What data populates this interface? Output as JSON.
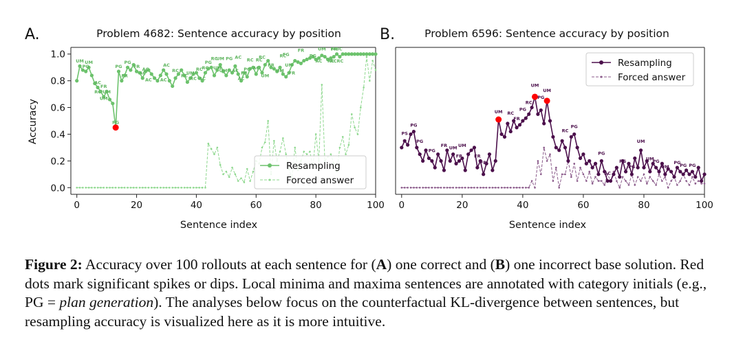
{
  "caption": {
    "label": "Figure 2:",
    "t1": " Accuracy over 100 rollouts at each sentence for (",
    "A": "A",
    "t2": ") one correct and (",
    "B": "B",
    "t3": ") one incorrect base solution. Red dots mark significant spikes or dips. Local minima and maxima sentences are annotated with category initials (e.g., PG = ",
    "em": "plan generation",
    "t4": "). The analyses below focus on the counterfactual KL-divergence between sentences, but resampling accuracy is visualized here as it is more intuitive."
  },
  "chart_data": [
    {
      "type": "line",
      "panel_letter": "A.",
      "title": "Problem 4682: Sentence accuracy by position",
      "xlabel": "Sentence index",
      "ylabel": "Accuracy",
      "xlim": [
        -2,
        100
      ],
      "ylim": [
        -0.05,
        1.05
      ],
      "xticks": [
        0,
        20,
        40,
        60,
        80,
        100
      ],
      "yticks": [
        0.0,
        0.2,
        0.4,
        0.6,
        0.8,
        1.0
      ],
      "ytick_labels": [
        "0.0",
        "0.2",
        "0.4",
        "0.6",
        "0.8",
        "1.0"
      ],
      "grid": false,
      "legend_position": "lower-right",
      "x": [
        0,
        1,
        2,
        3,
        4,
        5,
        6,
        7,
        8,
        9,
        10,
        11,
        12,
        13,
        14,
        15,
        16,
        17,
        18,
        19,
        20,
        21,
        22,
        23,
        24,
        25,
        26,
        27,
        28,
        29,
        30,
        31,
        32,
        33,
        34,
        35,
        36,
        37,
        38,
        39,
        40,
        41,
        42,
        43,
        44,
        45,
        46,
        47,
        48,
        49,
        50,
        51,
        52,
        53,
        54,
        55,
        56,
        57,
        58,
        59,
        60,
        61,
        62,
        63,
        64,
        65,
        66,
        67,
        68,
        69,
        70,
        71,
        72,
        73,
        74,
        75,
        76,
        77,
        78,
        79,
        80,
        81,
        82,
        83,
        84,
        85,
        86,
        87,
        88,
        89,
        90,
        91,
        92,
        93,
        94,
        95,
        96,
        97,
        98,
        99,
        100
      ],
      "series": [
        {
          "name": "Resampling",
          "color": "#6cc26c",
          "style": "solid",
          "values": [
            0.8,
            0.91,
            0.88,
            0.87,
            0.9,
            0.84,
            0.78,
            0.75,
            0.72,
            0.68,
            0.72,
            0.66,
            0.63,
            0.45,
            0.87,
            0.8,
            0.84,
            0.9,
            0.88,
            0.92,
            0.87,
            0.86,
            0.82,
            0.87,
            0.88,
            0.85,
            0.82,
            0.8,
            0.84,
            0.88,
            0.85,
            0.8,
            0.76,
            0.82,
            0.85,
            0.88,
            0.84,
            0.79,
            0.82,
            0.85,
            0.86,
            0.82,
            0.8,
            0.86,
            0.89,
            0.9,
            0.84,
            0.88,
            0.92,
            0.87,
            0.84,
            0.88,
            0.86,
            0.91,
            0.85,
            0.8,
            0.86,
            0.83,
            0.89,
            0.9,
            0.85,
            0.9,
            0.86,
            0.92,
            0.95,
            0.9,
            0.89,
            0.87,
            0.9,
            0.85,
            0.83,
            0.86,
            0.92,
            0.95,
            0.94,
            0.93,
            0.95,
            0.96,
            0.97,
            0.98,
            0.96,
            0.97,
            0.99,
            0.98,
            0.96,
            0.97,
            0.98,
            1.0,
            0.98,
            1.0,
            1.0,
            1.0,
            1.0,
            1.0,
            1.0,
            1.0,
            1.0,
            1.0,
            1.0,
            1.0,
            1.0
          ]
        },
        {
          "name": "Forced answer",
          "color": "#8fd88f",
          "style": "dashed",
          "values": [
            0.0,
            0.0,
            0.0,
            0.0,
            0.0,
            0.0,
            0.0,
            0.0,
            0.0,
            0.0,
            0.0,
            0.0,
            0.0,
            0.0,
            0.0,
            0.0,
            0.0,
            0.0,
            0.0,
            0.0,
            0.0,
            0.0,
            0.0,
            0.0,
            0.0,
            0.0,
            0.0,
            0.0,
            0.0,
            0.0,
            0.0,
            0.0,
            0.0,
            0.0,
            0.0,
            0.0,
            0.0,
            0.0,
            0.0,
            0.0,
            0.0,
            0.0,
            0.0,
            0.0,
            0.33,
            0.29,
            0.25,
            0.3,
            0.17,
            0.1,
            0.12,
            0.08,
            0.15,
            0.1,
            0.05,
            0.07,
            0.04,
            0.14,
            0.05,
            0.12,
            0.2,
            0.18,
            0.3,
            0.34,
            0.5,
            0.1,
            0.35,
            0.2,
            0.27,
            0.37,
            0.25,
            0.14,
            0.07,
            0.3,
            0.13,
            0.2,
            0.27,
            0.25,
            0.27,
            0.15,
            0.4,
            0.2,
            0.77,
            0.2,
            0.23,
            0.25,
            0.18,
            0.12,
            0.3,
            0.38,
            0.25,
            0.32,
            0.55,
            0.45,
            0.4,
            0.6,
            0.75,
            0.98,
            0.8,
            0.95,
            0.88
          ]
        }
      ],
      "highlights": [
        {
          "x": 13,
          "y": 0.45,
          "label": "PG"
        }
      ],
      "annotations": [
        {
          "x": 1,
          "y": 0.91,
          "t": "UM"
        },
        {
          "x": 4,
          "y": 0.9,
          "t": "UM"
        },
        {
          "x": 3,
          "y": 0.87,
          "t": "PG"
        },
        {
          "x": 7,
          "y": 0.75,
          "t": "AC"
        },
        {
          "x": 9,
          "y": 0.72,
          "t": "FR"
        },
        {
          "x": 7,
          "y": 0.68,
          "t": "RC"
        },
        {
          "x": 10,
          "y": 0.68,
          "t": "UM"
        },
        {
          "x": 9,
          "y": 0.63,
          "t": "UM"
        },
        {
          "x": 13,
          "y": 0.45,
          "t": "PG"
        },
        {
          "x": 14,
          "y": 0.87,
          "t": "PG"
        },
        {
          "x": 16,
          "y": 0.8,
          "t": "FR"
        },
        {
          "x": 17,
          "y": 0.9,
          "t": "PG"
        },
        {
          "x": 20,
          "y": 0.87,
          "t": "FR"
        },
        {
          "x": 23,
          "y": 0.85,
          "t": "AC"
        },
        {
          "x": 22,
          "y": 0.82,
          "t": "AC"
        },
        {
          "x": 24,
          "y": 0.77,
          "t": "AC"
        },
        {
          "x": 30,
          "y": 0.88,
          "t": "AC"
        },
        {
          "x": 29,
          "y": 0.77,
          "t": "AC"
        },
        {
          "x": 33,
          "y": 0.84,
          "t": "RC"
        },
        {
          "x": 36,
          "y": 0.8,
          "t": "RC"
        },
        {
          "x": 38,
          "y": 0.82,
          "t": "UM"
        },
        {
          "x": 39,
          "y": 0.78,
          "t": "RC"
        },
        {
          "x": 41,
          "y": 0.85,
          "t": "RC"
        },
        {
          "x": 42,
          "y": 0.78,
          "t": "AC"
        },
        {
          "x": 43,
          "y": 0.86,
          "t": "RC"
        },
        {
          "x": 44,
          "y": 0.9,
          "t": "PG"
        },
        {
          "x": 46,
          "y": 0.93,
          "t": "RC"
        },
        {
          "x": 48,
          "y": 0.93,
          "t": "UM"
        },
        {
          "x": 47,
          "y": 0.86,
          "t": "UM"
        },
        {
          "x": 49,
          "y": 0.84,
          "t": "UM"
        },
        {
          "x": 51,
          "y": 0.93,
          "t": "PG"
        },
        {
          "x": 54,
          "y": 0.94,
          "t": "AC"
        },
        {
          "x": 53,
          "y": 0.84,
          "t": "AC"
        },
        {
          "x": 55,
          "y": 0.78,
          "t": "AC"
        },
        {
          "x": 58,
          "y": 0.92,
          "t": "RC"
        },
        {
          "x": 57,
          "y": 0.85,
          "t": "PG"
        },
        {
          "x": 56,
          "y": 0.82,
          "t": "FR"
        },
        {
          "x": 60,
          "y": 0.86,
          "t": "AC"
        },
        {
          "x": 61,
          "y": 0.92,
          "t": "RC"
        },
        {
          "x": 62,
          "y": 0.94,
          "t": "RC"
        },
        {
          "x": 63,
          "y": 0.8,
          "t": "UM"
        },
        {
          "x": 65,
          "y": 0.88,
          "t": "FR"
        },
        {
          "x": 69,
          "y": 0.95,
          "t": "RC"
        },
        {
          "x": 70,
          "y": 0.96,
          "t": "FG"
        },
        {
          "x": 68,
          "y": 0.84,
          "t": "UM"
        },
        {
          "x": 71,
          "y": 0.88,
          "t": "UM"
        },
        {
          "x": 72,
          "y": 0.82,
          "t": "FR"
        },
        {
          "x": 75,
          "y": 0.99,
          "t": "FR"
        },
        {
          "x": 79,
          "y": 0.95,
          "t": "PG"
        },
        {
          "x": 81,
          "y": 0.91,
          "t": "AC"
        },
        {
          "x": 82,
          "y": 1.0,
          "t": "UM"
        },
        {
          "x": 86,
          "y": 1.0,
          "t": "FR"
        },
        {
          "x": 87,
          "y": 1.0,
          "t": "MBC"
        },
        {
          "x": 85,
          "y": 0.91,
          "t": "RC"
        },
        {
          "x": 87,
          "y": 0.91,
          "t": "RCRC"
        }
      ]
    },
    {
      "type": "line",
      "panel_letter": "B.",
      "title": "Problem 6596: Sentence accuracy by position",
      "xlabel": "Sentence index",
      "ylabel": "",
      "xlim": [
        -2,
        100
      ],
      "ylim": [
        -0.05,
        1.05
      ],
      "xticks": [
        0,
        20,
        40,
        60,
        80,
        100
      ],
      "grid": false,
      "legend_position": "top-right",
      "x": [
        0,
        1,
        2,
        3,
        4,
        5,
        6,
        7,
        8,
        9,
        10,
        11,
        12,
        13,
        14,
        15,
        16,
        17,
        18,
        19,
        20,
        21,
        22,
        23,
        24,
        25,
        26,
        27,
        28,
        29,
        30,
        31,
        32,
        33,
        34,
        35,
        36,
        37,
        38,
        39,
        40,
        41,
        42,
        43,
        44,
        45,
        46,
        47,
        48,
        49,
        50,
        51,
        52,
        53,
        54,
        55,
        56,
        57,
        58,
        59,
        60,
        61,
        62,
        63,
        64,
        65,
        66,
        67,
        68,
        69,
        70,
        71,
        72,
        73,
        74,
        75,
        76,
        77,
        78,
        79,
        80,
        81,
        82,
        83,
        84,
        85,
        86,
        87,
        88,
        89,
        90,
        91,
        92,
        93,
        94,
        95,
        96,
        97,
        98,
        99,
        100
      ],
      "series": [
        {
          "name": "Resampling",
          "color": "#4b0f4b",
          "style": "solid",
          "values": [
            0.3,
            0.35,
            0.32,
            0.4,
            0.42,
            0.3,
            0.25,
            0.2,
            0.28,
            0.22,
            0.2,
            0.15,
            0.25,
            0.2,
            0.13,
            0.28,
            0.2,
            0.25,
            0.18,
            0.2,
            0.22,
            0.13,
            0.25,
            0.28,
            0.3,
            0.15,
            0.2,
            0.1,
            0.18,
            0.25,
            0.13,
            0.2,
            0.51,
            0.4,
            0.38,
            0.48,
            0.42,
            0.5,
            0.45,
            0.47,
            0.5,
            0.52,
            0.55,
            0.6,
            0.68,
            0.55,
            0.58,
            0.48,
            0.65,
            0.5,
            0.38,
            0.3,
            0.28,
            0.35,
            0.3,
            0.2,
            0.38,
            0.4,
            0.3,
            0.22,
            0.25,
            0.18,
            0.2,
            0.15,
            0.18,
            0.1,
            0.2,
            0.12,
            0.05,
            0.05,
            0.1,
            0.15,
            0.08,
            0.2,
            0.12,
            0.18,
            0.1,
            0.22,
            0.15,
            0.28,
            0.15,
            0.2,
            0.12,
            0.18,
            0.15,
            0.12,
            0.18,
            0.1,
            0.14,
            0.12,
            0.08,
            0.15,
            0.12,
            0.1,
            0.13,
            0.1,
            0.12,
            0.08,
            0.15,
            0.05,
            0.1
          ]
        },
        {
          "name": "Forced answer",
          "color": "#8a5a8a",
          "style": "dashed",
          "values": [
            0.0,
            0.0,
            0.0,
            0.0,
            0.0,
            0.0,
            0.0,
            0.0,
            0.0,
            0.0,
            0.0,
            0.0,
            0.0,
            0.0,
            0.0,
            0.0,
            0.0,
            0.0,
            0.0,
            0.0,
            0.0,
            0.0,
            0.0,
            0.0,
            0.0,
            0.0,
            0.0,
            0.0,
            0.0,
            0.0,
            0.0,
            0.0,
            0.0,
            0.0,
            0.0,
            0.0,
            0.0,
            0.0,
            0.0,
            0.0,
            0.0,
            0.0,
            0.0,
            0.05,
            0.0,
            0.2,
            0.1,
            0.3,
            0.2,
            0.25,
            0.05,
            0.15,
            0.0,
            0.1,
            0.1,
            0.2,
            0.08,
            0.18,
            0.05,
            0.15,
            0.1,
            0.05,
            0.12,
            0.03,
            0.08,
            0.05,
            0.05,
            0.02,
            0.1,
            0.05,
            0.12,
            0.05,
            0.0,
            0.08,
            0.05,
            0.02,
            0.1,
            0.02,
            0.08,
            0.05,
            0.1,
            0.03,
            0.08,
            0.05,
            0.02,
            0.1,
            0.05,
            0.08,
            0.0,
            0.05,
            0.08,
            0.02,
            0.05,
            0.1,
            0.05,
            0.02,
            0.08,
            0.03,
            0.05,
            0.03,
            0.03
          ]
        }
      ],
      "highlights": [
        {
          "x": 32,
          "y": 0.51,
          "label": "UM"
        },
        {
          "x": 44,
          "y": 0.68,
          "label": "UM"
        },
        {
          "x": 48,
          "y": 0.65,
          "label": "UM"
        }
      ],
      "annotations": [
        {
          "x": 1,
          "y": 0.37,
          "t": "PS"
        },
        {
          "x": 4,
          "y": 0.43,
          "t": "PG"
        },
        {
          "x": 6,
          "y": 0.31,
          "t": "PG"
        },
        {
          "x": 10,
          "y": 0.24,
          "t": "PG"
        },
        {
          "x": 14,
          "y": 0.28,
          "t": "FR"
        },
        {
          "x": 17,
          "y": 0.26,
          "t": "UM"
        },
        {
          "x": 19,
          "y": 0.2,
          "t": "FR"
        },
        {
          "x": 20,
          "y": 0.28,
          "t": "UM"
        },
        {
          "x": 25,
          "y": 0.2,
          "t": "FR"
        },
        {
          "x": 27,
          "y": 0.15,
          "t": "FR"
        },
        {
          "x": 32,
          "y": 0.53,
          "t": "UM"
        },
        {
          "x": 36,
          "y": 0.52,
          "t": "RC"
        },
        {
          "x": 38,
          "y": 0.48,
          "t": "FR"
        },
        {
          "x": 40,
          "y": 0.55,
          "t": "PG"
        },
        {
          "x": 42,
          "y": 0.6,
          "t": "RC"
        },
        {
          "x": 44,
          "y": 0.73,
          "t": "UM"
        },
        {
          "x": 46,
          "y": 0.64,
          "t": "PG"
        },
        {
          "x": 48,
          "y": 0.69,
          "t": "UM"
        },
        {
          "x": 54,
          "y": 0.39,
          "t": "RC"
        },
        {
          "x": 57,
          "y": 0.42,
          "t": "PG"
        },
        {
          "x": 68,
          "y": 0.07,
          "t": "AC"
        },
        {
          "x": 66,
          "y": 0.22,
          "t": "PG"
        },
        {
          "x": 73,
          "y": 0.16,
          "t": "PG"
        },
        {
          "x": 79,
          "y": 0.31,
          "t": "UM"
        },
        {
          "x": 76,
          "y": 0.12,
          "t": "PG"
        },
        {
          "x": 82,
          "y": 0.18,
          "t": "UM"
        },
        {
          "x": 84,
          "y": 0.16,
          "t": "PG"
        },
        {
          "x": 87,
          "y": 0.12,
          "t": "UM"
        },
        {
          "x": 93,
          "y": 0.13,
          "t": "PG"
        },
        {
          "x": 96,
          "y": 0.13,
          "t": "PG"
        },
        {
          "x": 91,
          "y": 0.15,
          "t": "PG"
        }
      ]
    }
  ]
}
